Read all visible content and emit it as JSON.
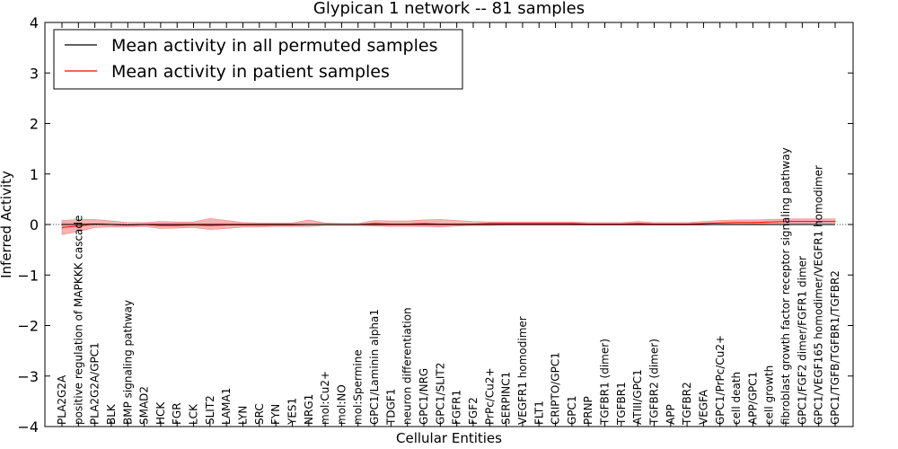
{
  "chart_data": {
    "type": "line",
    "title": "Glypican 1 network -- 81 samples",
    "xlabel": "Cellular Entities",
    "ylabel": "Inferred Activity",
    "ylim": [
      -4,
      4
    ],
    "yticks": [
      {
        "value": -4,
        "label": "−4"
      },
      {
        "value": -3,
        "label": "−3"
      },
      {
        "value": -2,
        "label": "−2"
      },
      {
        "value": -1,
        "label": "−1"
      },
      {
        "value": 0,
        "label": "0"
      },
      {
        "value": 1,
        "label": "1"
      },
      {
        "value": 2,
        "label": "2"
      },
      {
        "value": 3,
        "label": "3"
      },
      {
        "value": 4,
        "label": "4"
      }
    ],
    "grid": false,
    "legend_position": "top-left",
    "categories": [
      "PLA2G2A",
      "positive regulation of MAPKKK cascade",
      "PLA2G2A/GPC1",
      "BLK",
      "BMP signaling pathway",
      "SMAD2",
      "HCK",
      "FGR",
      "LCK",
      "SLIT2",
      "LAMA1",
      "LYN",
      "SRC",
      "FYN",
      "YES1",
      "NRG1",
      "mol:Cu2+",
      "mol:NO",
      "mol:Spermine",
      "GPC1/Laminin alpha1",
      "TDGF1",
      "neuron differentiation",
      "GPC1/NRG",
      "GPC1/SLIT2",
      "FGFR1",
      "FGF2",
      "PrPc/Cu2+",
      "SERPINC1",
      "VEGFR1 homodimer",
      "FLT1",
      "CRIPTO/GPC1",
      "GPC1",
      "PRNP",
      "TGFBR1 (dimer)",
      "TGFBR1",
      "ATIII/GPC1",
      "TGFBR2 (dimer)",
      "APP",
      "TGFBR2",
      "VEGFA",
      "GPC1/PrPc/Cu2+",
      "cell death",
      "APP/GPC1",
      "cell growth",
      "fibroblast growth factor receptor signaling pathway",
      "GPC1/FGF2 dimer/FGFR1 dimer",
      "GPC1/VEGF165 homodimer/VEGFR1 homodimer",
      "GPC1/TGFB/TGFBR1/TGFBR2"
    ],
    "series": [
      {
        "name": "Mean activity in all permuted samples",
        "color": "#000000",
        "values": [
          0.0,
          0.0,
          0.01,
          0.0,
          -0.01,
          0.0,
          0.0,
          0.0,
          0.0,
          0.0,
          0.0,
          0.0,
          0.0,
          0.0,
          0.0,
          0.0,
          0.0,
          0.0,
          0.0,
          0.0,
          0.0,
          0.0,
          0.0,
          0.0,
          0.0,
          0.0,
          0.0,
          0.0,
          0.0,
          0.0,
          0.0,
          0.0,
          0.0,
          0.0,
          0.0,
          0.0,
          0.0,
          0.0,
          0.0,
          0.0,
          0.0,
          0.0,
          0.0,
          0.0,
          0.0,
          0.0,
          0.0,
          0.0
        ],
        "band_lower": [
          -0.05,
          -0.04,
          -0.03,
          -0.02,
          -0.02,
          -0.02,
          -0.03,
          -0.03,
          -0.03,
          -0.03,
          -0.03,
          -0.03,
          -0.03,
          -0.03,
          -0.03,
          -0.03,
          -0.02,
          -0.02,
          -0.02,
          -0.02,
          -0.02,
          -0.02,
          -0.02,
          -0.02,
          -0.02,
          -0.02,
          -0.02,
          -0.02,
          -0.02,
          -0.02,
          -0.02,
          -0.02,
          -0.02,
          -0.02,
          -0.02,
          -0.02,
          -0.02,
          -0.02,
          -0.02,
          -0.02,
          -0.02,
          -0.02,
          -0.02,
          -0.02,
          -0.02,
          -0.02,
          -0.02,
          -0.02
        ],
        "band_upper": [
          0.05,
          0.04,
          0.03,
          0.02,
          0.02,
          0.02,
          0.03,
          0.03,
          0.03,
          0.03,
          0.03,
          0.03,
          0.03,
          0.03,
          0.03,
          0.03,
          0.02,
          0.02,
          0.02,
          0.02,
          0.02,
          0.02,
          0.02,
          0.02,
          0.02,
          0.02,
          0.02,
          0.02,
          0.02,
          0.02,
          0.02,
          0.02,
          0.02,
          0.02,
          0.02,
          0.02,
          0.02,
          0.02,
          0.02,
          0.02,
          0.02,
          0.02,
          0.02,
          0.02,
          0.02,
          0.02,
          0.02,
          0.02
        ]
      },
      {
        "name": "Mean activity in patient samples",
        "color": "#ff0000",
        "fill_color": "#f08080",
        "values": [
          -0.06,
          -0.03,
          0.01,
          0.0,
          -0.01,
          0.0,
          -0.02,
          -0.02,
          -0.01,
          -0.02,
          -0.01,
          -0.01,
          -0.01,
          -0.01,
          -0.01,
          0.0,
          0.0,
          0.0,
          0.0,
          0.02,
          0.01,
          0.01,
          0.02,
          0.01,
          0.01,
          0.01,
          0.02,
          0.02,
          0.02,
          0.02,
          0.02,
          0.02,
          0.01,
          0.01,
          0.01,
          0.02,
          0.01,
          0.01,
          0.01,
          0.02,
          0.03,
          0.04,
          0.04,
          0.05,
          0.06,
          0.06,
          0.06,
          0.06
        ],
        "band_lower": [
          -0.2,
          -0.14,
          -0.06,
          -0.05,
          -0.05,
          -0.04,
          -0.08,
          -0.07,
          -0.06,
          -0.1,
          -0.08,
          -0.05,
          -0.05,
          -0.04,
          -0.04,
          -0.04,
          -0.02,
          -0.02,
          -0.02,
          -0.03,
          -0.04,
          -0.04,
          -0.04,
          -0.05,
          -0.03,
          -0.02,
          -0.02,
          -0.01,
          -0.01,
          -0.01,
          -0.01,
          -0.01,
          -0.01,
          -0.01,
          -0.01,
          -0.01,
          -0.01,
          -0.01,
          -0.01,
          -0.01,
          0.0,
          0.0,
          0.01,
          0.02,
          0.02,
          0.02,
          0.03,
          0.03
        ],
        "band_upper": [
          0.08,
          0.1,
          0.1,
          0.07,
          0.04,
          0.04,
          0.06,
          0.05,
          0.05,
          0.12,
          0.08,
          0.04,
          0.03,
          0.03,
          0.03,
          0.09,
          0.03,
          0.02,
          0.02,
          0.08,
          0.07,
          0.07,
          0.09,
          0.1,
          0.08,
          0.06,
          0.05,
          0.05,
          0.05,
          0.05,
          0.05,
          0.05,
          0.04,
          0.04,
          0.04,
          0.06,
          0.04,
          0.04,
          0.04,
          0.06,
          0.08,
          0.09,
          0.09,
          0.1,
          0.11,
          0.11,
          0.11,
          0.11
        ]
      }
    ]
  }
}
